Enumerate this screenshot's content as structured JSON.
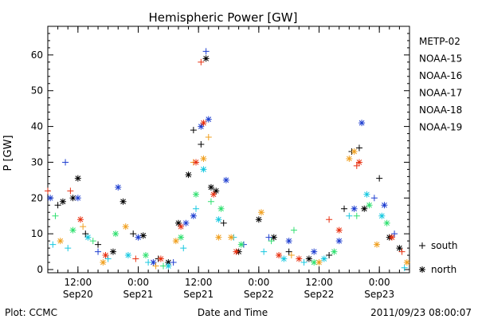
{
  "chart_data": {
    "type": "scatter",
    "title": "Hemispheric Power [GW]",
    "xlabel": "Date and Time",
    "ylabel": "P [GW]",
    "ylim": [
      0,
      68
    ],
    "xlim": [
      "2011-09-20 06:00",
      "2011-09-23 06:00"
    ],
    "yticks": [
      0,
      10,
      20,
      30,
      40,
      50,
      60
    ],
    "xticks": [
      {
        "time": "2011-09-20 12:00",
        "line1": "12:00",
        "line2": "Sep20"
      },
      {
        "time": "2011-09-21 00:00",
        "line1": "0:00",
        "line2": "Sep21"
      },
      {
        "time": "2011-09-21 12:00",
        "line1": "12:00",
        "line2": "Sep21"
      },
      {
        "time": "2011-09-22 00:00",
        "line1": "0:00",
        "line2": "Sep22"
      },
      {
        "time": "2011-09-22 12:00",
        "line1": "12:00",
        "line2": "Sep22"
      },
      {
        "time": "2011-09-23 00:00",
        "line1": "0:00",
        "line2": "Sep23"
      }
    ],
    "grid": false,
    "legend_position": "right",
    "legend": [
      {
        "name": "METP-02",
        "color": "#000000"
      },
      {
        "name": "NOAA-15",
        "color": "#1f3fd0"
      },
      {
        "name": "NOAA-16",
        "color": "#18c8e0"
      },
      {
        "name": "NOAA-17",
        "color": "#30e070"
      },
      {
        "name": "NOAA-18",
        "color": "#f0a020"
      },
      {
        "name": "NOAA-19",
        "color": "#e83010"
      }
    ],
    "marker_legend": [
      {
        "symbol": "+",
        "label": "south"
      },
      {
        "symbol": "*",
        "label": "north"
      }
    ],
    "series": [
      {
        "name": "METP-02",
        "color": "#000000",
        "points": [
          [
            "2011-09-20 08:00",
            18,
            "+"
          ],
          [
            "2011-09-20 09:00",
            19,
            "*"
          ],
          [
            "2011-09-20 11:00",
            20,
            "*"
          ],
          [
            "2011-09-20 12:00",
            25.5,
            "*"
          ],
          [
            "2011-09-20 13:30",
            10,
            "+"
          ],
          [
            "2011-09-20 16:00",
            7,
            "+"
          ],
          [
            "2011-09-20 19:00",
            5,
            "*"
          ],
          [
            "2011-09-20 21:00",
            19,
            "*"
          ],
          [
            "2011-09-20 23:00",
            10,
            "+"
          ],
          [
            "2011-09-21 01:00",
            9.5,
            "*"
          ],
          [
            "2011-09-21 04:00",
            3,
            "+"
          ],
          [
            "2011-09-21 06:00",
            2,
            "*"
          ],
          [
            "2011-09-21 08:00",
            13,
            "*"
          ],
          [
            "2011-09-21 10:00",
            26.5,
            "*"
          ],
          [
            "2011-09-21 11:00",
            39,
            "+"
          ],
          [
            "2011-09-21 12:30",
            35,
            "+"
          ],
          [
            "2011-09-21 13:30",
            59,
            "*"
          ],
          [
            "2011-09-21 14:30",
            23,
            "*"
          ],
          [
            "2011-09-21 15:30",
            22,
            "*"
          ],
          [
            "2011-09-21 17:00",
            13,
            "+"
          ],
          [
            "2011-09-21 20:00",
            5,
            "*"
          ],
          [
            "2011-09-22 00:00",
            14,
            "*"
          ],
          [
            "2011-09-22 03:00",
            9,
            "*"
          ],
          [
            "2011-09-22 06:00",
            5,
            "+"
          ],
          [
            "2011-09-22 10:00",
            3,
            "*"
          ],
          [
            "2011-09-22 14:00",
            4,
            "+"
          ],
          [
            "2011-09-22 17:00",
            17,
            "+"
          ],
          [
            "2011-09-22 18:30",
            33,
            "+"
          ],
          [
            "2011-09-22 20:00",
            34,
            "+"
          ],
          [
            "2011-09-22 21:00",
            17,
            "*"
          ],
          [
            "2011-09-23 00:00",
            25.5,
            "+"
          ],
          [
            "2011-09-23 02:00",
            9,
            "*"
          ],
          [
            "2011-09-23 04:00",
            6,
            "*"
          ]
        ]
      },
      {
        "name": "NOAA-15",
        "color": "#1f3fd0",
        "points": [
          [
            "2011-09-20 06:30",
            20,
            "*"
          ],
          [
            "2011-09-20 09:30",
            30,
            "+"
          ],
          [
            "2011-09-20 12:00",
            20,
            "*"
          ],
          [
            "2011-09-20 16:00",
            5,
            "+"
          ],
          [
            "2011-09-20 20:00",
            23,
            "*"
          ],
          [
            "2011-09-21 00:00",
            9,
            "*"
          ],
          [
            "2011-09-21 03:00",
            2,
            "*"
          ],
          [
            "2011-09-21 07:00",
            2,
            "+"
          ],
          [
            "2011-09-21 09:30",
            13,
            "*"
          ],
          [
            "2011-09-21 11:00",
            15,
            "*"
          ],
          [
            "2011-09-21 12:30",
            40,
            "*"
          ],
          [
            "2011-09-21 13:30",
            61,
            "+"
          ],
          [
            "2011-09-21 14:00",
            42,
            "*"
          ],
          [
            "2011-09-21 17:30",
            25,
            "*"
          ],
          [
            "2011-09-21 21:00",
            7,
            "+"
          ],
          [
            "2011-09-22 02:00",
            9,
            "+"
          ],
          [
            "2011-09-22 06:00",
            8,
            "*"
          ],
          [
            "2011-09-22 11:00",
            5,
            "*"
          ],
          [
            "2011-09-22 16:00",
            8,
            "*"
          ],
          [
            "2011-09-22 19:00",
            17,
            "*"
          ],
          [
            "2011-09-22 20:30",
            41,
            "*"
          ],
          [
            "2011-09-22 23:00",
            20,
            "+"
          ],
          [
            "2011-09-23 01:00",
            18,
            "*"
          ],
          [
            "2011-09-23 03:00",
            10,
            "+"
          ]
        ]
      },
      {
        "name": "NOAA-16",
        "color": "#18c8e0",
        "points": [
          [
            "2011-09-20 07:00",
            7,
            "+"
          ],
          [
            "2011-09-20 10:00",
            6,
            "+"
          ],
          [
            "2011-09-20 14:00",
            9,
            "*"
          ],
          [
            "2011-09-20 18:00",
            3,
            "+"
          ],
          [
            "2011-09-20 22:00",
            4,
            "*"
          ],
          [
            "2011-09-21 02:00",
            2,
            "+"
          ],
          [
            "2011-09-21 06:00",
            1,
            "*"
          ],
          [
            "2011-09-21 09:00",
            6,
            "+"
          ],
          [
            "2011-09-21 11:30",
            17,
            "+"
          ],
          [
            "2011-09-21 13:00",
            28,
            "*"
          ],
          [
            "2011-09-21 16:00",
            14,
            "*"
          ],
          [
            "2011-09-21 19:00",
            9,
            "+"
          ],
          [
            "2011-09-22 01:00",
            5,
            "+"
          ],
          [
            "2011-09-22 05:00",
            3,
            "*"
          ],
          [
            "2011-09-22 09:00",
            2,
            "+"
          ],
          [
            "2011-09-22 13:00",
            3,
            "*"
          ],
          [
            "2011-09-22 18:00",
            15,
            "+"
          ],
          [
            "2011-09-22 21:30",
            21,
            "*"
          ],
          [
            "2011-09-23 00:30",
            15,
            "*"
          ],
          [
            "2011-09-23 05:00",
            0.5,
            "+"
          ]
        ]
      },
      {
        "name": "NOAA-17",
        "color": "#30e070",
        "points": [
          [
            "2011-09-20 07:30",
            15,
            "+"
          ],
          [
            "2011-09-20 11:00",
            11,
            "*"
          ],
          [
            "2011-09-20 15:00",
            8,
            "+"
          ],
          [
            "2011-09-20 19:30",
            10,
            "*"
          ],
          [
            "2011-09-21 01:30",
            4,
            "*"
          ],
          [
            "2011-09-21 05:00",
            1,
            "+"
          ],
          [
            "2011-09-21 08:30",
            9,
            "*"
          ],
          [
            "2011-09-21 11:30",
            21,
            "*"
          ],
          [
            "2011-09-21 14:30",
            19,
            "+"
          ],
          [
            "2011-09-21 16:30",
            17,
            "*"
          ],
          [
            "2011-09-21 20:30",
            7,
            "*"
          ],
          [
            "2011-09-22 02:30",
            8,
            "+"
          ],
          [
            "2011-09-22 07:00",
            11,
            "+"
          ],
          [
            "2011-09-22 11:00",
            2,
            "*"
          ],
          [
            "2011-09-22 15:00",
            5,
            "*"
          ],
          [
            "2011-09-22 19:30",
            15,
            "+"
          ],
          [
            "2011-09-22 22:00",
            18,
            "*"
          ],
          [
            "2011-09-23 01:30",
            13,
            "*"
          ]
        ]
      },
      {
        "name": "NOAA-18",
        "color": "#f0a020",
        "points": [
          [
            "2011-09-20 08:30",
            8,
            "*"
          ],
          [
            "2011-09-20 13:00",
            12,
            "+"
          ],
          [
            "2011-09-20 17:00",
            2,
            "*"
          ],
          [
            "2011-09-20 21:30",
            12,
            "*"
          ],
          [
            "2011-09-21 03:30",
            1,
            "+"
          ],
          [
            "2011-09-21 07:30",
            8,
            "*"
          ],
          [
            "2011-09-21 11:00",
            30,
            "+"
          ],
          [
            "2011-09-21 13:00",
            31,
            "*"
          ],
          [
            "2011-09-21 14:00",
            37,
            "+"
          ],
          [
            "2011-09-21 16:00",
            9,
            "*"
          ],
          [
            "2011-09-21 18:30",
            9,
            "*"
          ],
          [
            "2011-09-22 00:30",
            16,
            "*"
          ],
          [
            "2011-09-22 06:30",
            4,
            "+"
          ],
          [
            "2011-09-22 12:00",
            2,
            "*"
          ],
          [
            "2011-09-22 18:00",
            31,
            "*"
          ],
          [
            "2011-09-22 19:00",
            33,
            "*"
          ],
          [
            "2011-09-22 23:30",
            7,
            "*"
          ],
          [
            "2011-09-23 05:30",
            2,
            "*"
          ]
        ]
      },
      {
        "name": "NOAA-19",
        "color": "#e83010",
        "points": [
          [
            "2011-09-20 06:00",
            22,
            "+"
          ],
          [
            "2011-09-20 10:30",
            22,
            "+"
          ],
          [
            "2011-09-20 12:30",
            14,
            "*"
          ],
          [
            "2011-09-20 17:30",
            4,
            "*"
          ],
          [
            "2011-09-20 23:30",
            3,
            "+"
          ],
          [
            "2011-09-21 04:30",
            3,
            "*"
          ],
          [
            "2011-09-21 08:30",
            12,
            "*"
          ],
          [
            "2011-09-21 11:30",
            30,
            "*"
          ],
          [
            "2011-09-21 12:30",
            58,
            "+"
          ],
          [
            "2011-09-21 13:00",
            41,
            "*"
          ],
          [
            "2011-09-21 15:00",
            21,
            "*"
          ],
          [
            "2011-09-21 19:30",
            5,
            "*"
          ],
          [
            "2011-09-22 04:00",
            4,
            "*"
          ],
          [
            "2011-09-22 08:00",
            3,
            "*"
          ],
          [
            "2011-09-22 14:00",
            14,
            "+"
          ],
          [
            "2011-09-22 16:00",
            11,
            "*"
          ],
          [
            "2011-09-22 19:30",
            29,
            "+"
          ],
          [
            "2011-09-22 20:00",
            30,
            "*"
          ],
          [
            "2011-09-23 02:30",
            9,
            "*"
          ],
          [
            "2011-09-23 04:30",
            5,
            "+"
          ]
        ]
      }
    ]
  },
  "footer": {
    "plot_credit": "Plot: CCMC",
    "timestamp": "2011/09/23 08:00:07"
  }
}
